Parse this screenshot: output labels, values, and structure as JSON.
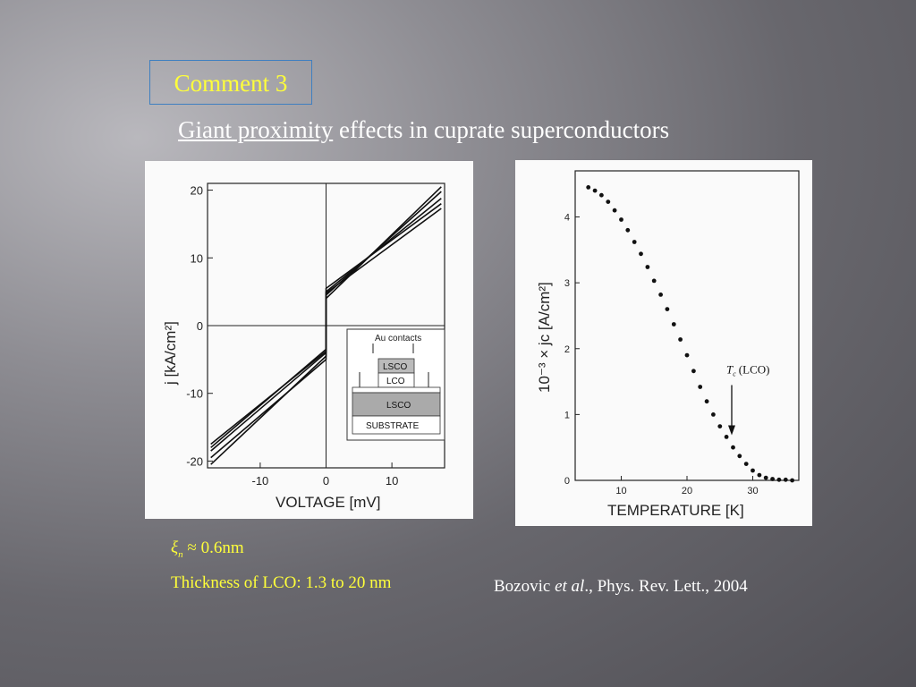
{
  "slide": {
    "comment_label": "Comment 3",
    "subtitle_underlined": "Giant proximity",
    "subtitle_rest": " effects in cuprate superconductors",
    "xi_symbol": "ξ",
    "xi_subscript": "n",
    "xi_value": "≈ 0.6nm",
    "thickness_note": "Thickness of LCO: 1.3 to 20 nm",
    "citation_author": "Bozovic ",
    "citation_etal": "et al",
    "citation_rest": "., Phys. Rev. Lett., 2004"
  },
  "colors": {
    "title_yellow": "#ffff3a",
    "border_blue": "#3f7fc0",
    "text_white": "#ffffff"
  },
  "chart_data": [
    {
      "type": "line",
      "xlabel": "VOLTAGE [mV]",
      "ylabel": "j  [kA/cm²]",
      "xlim": [
        -18,
        18
      ],
      "ylim": [
        -21,
        21
      ],
      "x_ticks": [
        "-10",
        "0",
        "10"
      ],
      "y_ticks": [
        "20",
        "10",
        "0",
        "-10",
        "-20"
      ],
      "series": [
        {
          "x": [
            -17.5,
            0,
            0,
            17.5
          ],
          "values": [
            -20.5,
            -4.5,
            4.0,
            20.5
          ]
        },
        {
          "x": [
            -17.5,
            0,
            0,
            17.5
          ],
          "values": [
            -19.5,
            -5.0,
            4.5,
            19.8
          ]
        },
        {
          "x": [
            -17.5,
            0,
            0,
            17.5
          ],
          "values": [
            -18.5,
            -4.0,
            5.0,
            18.8
          ]
        },
        {
          "x": [
            -17.5,
            0,
            0,
            17.5
          ],
          "values": [
            -18.0,
            -3.5,
            5.5,
            18.0
          ]
        },
        {
          "x": [
            -17.5,
            0,
            0,
            17.5
          ],
          "values": [
            -17.5,
            -3.8,
            4.8,
            17.3
          ]
        }
      ],
      "inset": {
        "labels": [
          "Au contacts",
          "LSCO",
          "LCO",
          "LSCO",
          "SUBSTRATE"
        ]
      }
    },
    {
      "type": "scatter",
      "xlabel": "TEMPERATURE  [K]",
      "ylabel": "10⁻³ × jc  [A/cm²]",
      "xlim": [
        3,
        37
      ],
      "ylim": [
        0,
        4.7
      ],
      "x_ticks": [
        "10",
        "20",
        "30"
      ],
      "y_ticks": [
        "0",
        "1",
        "2",
        "3",
        "4"
      ],
      "series": [
        {
          "x": [
            5,
            6,
            7,
            8,
            9,
            10,
            11,
            12,
            13,
            14,
            15,
            16,
            17,
            18,
            19,
            20,
            21,
            22,
            23,
            24,
            25,
            26,
            27,
            28,
            29,
            30,
            31,
            32,
            33,
            34,
            35,
            36
          ],
          "values": [
            4.45,
            4.4,
            4.33,
            4.23,
            4.1,
            3.96,
            3.8,
            3.62,
            3.44,
            3.24,
            3.03,
            2.82,
            2.6,
            2.37,
            2.14,
            1.9,
            1.66,
            1.42,
            1.2,
            1.0,
            0.82,
            0.66,
            0.5,
            0.37,
            0.25,
            0.15,
            0.08,
            0.04,
            0.02,
            0.01,
            0.01,
            0.0
          ]
        }
      ],
      "annotation": {
        "symbol": "T",
        "subscript": "c",
        "text": "(LCO)",
        "x": 26.8,
        "y": 0.7
      }
    }
  ]
}
